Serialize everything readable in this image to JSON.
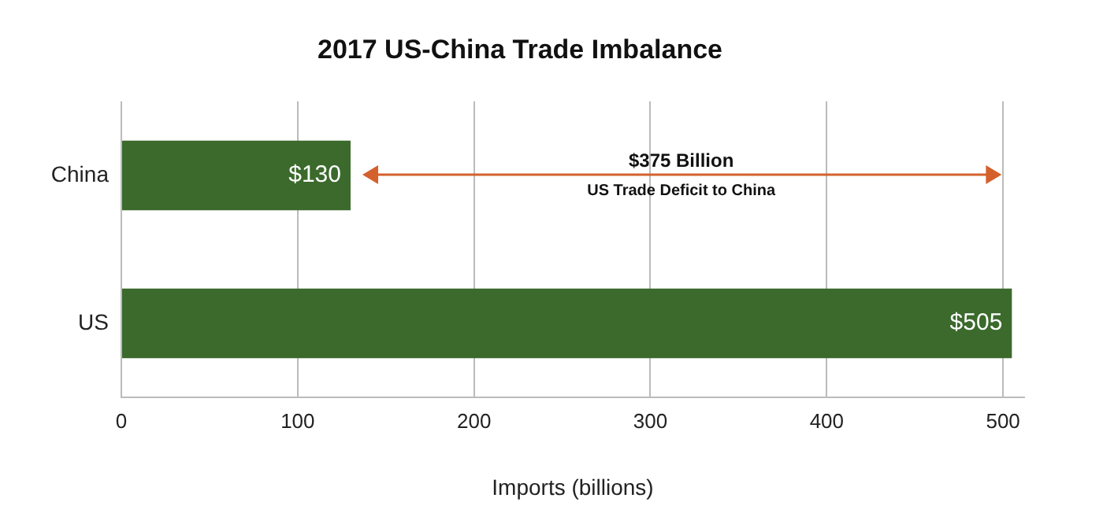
{
  "chart_data": {
    "type": "bar",
    "orientation": "horizontal",
    "title": "2017 US-China Trade Imbalance",
    "xlabel": "Imports (billions)",
    "categories": [
      "China",
      "US"
    ],
    "values": [
      130,
      505
    ],
    "color": "#3b6a2c",
    "value_labels": [
      "$130",
      "$505"
    ],
    "xlim": [
      0,
      512
    ],
    "xticks": [
      0,
      100,
      200,
      300,
      400,
      500
    ],
    "grid": "x",
    "annotations": [
      "$375 Billion",
      "US Trade Deficit to China"
    ]
  }
}
